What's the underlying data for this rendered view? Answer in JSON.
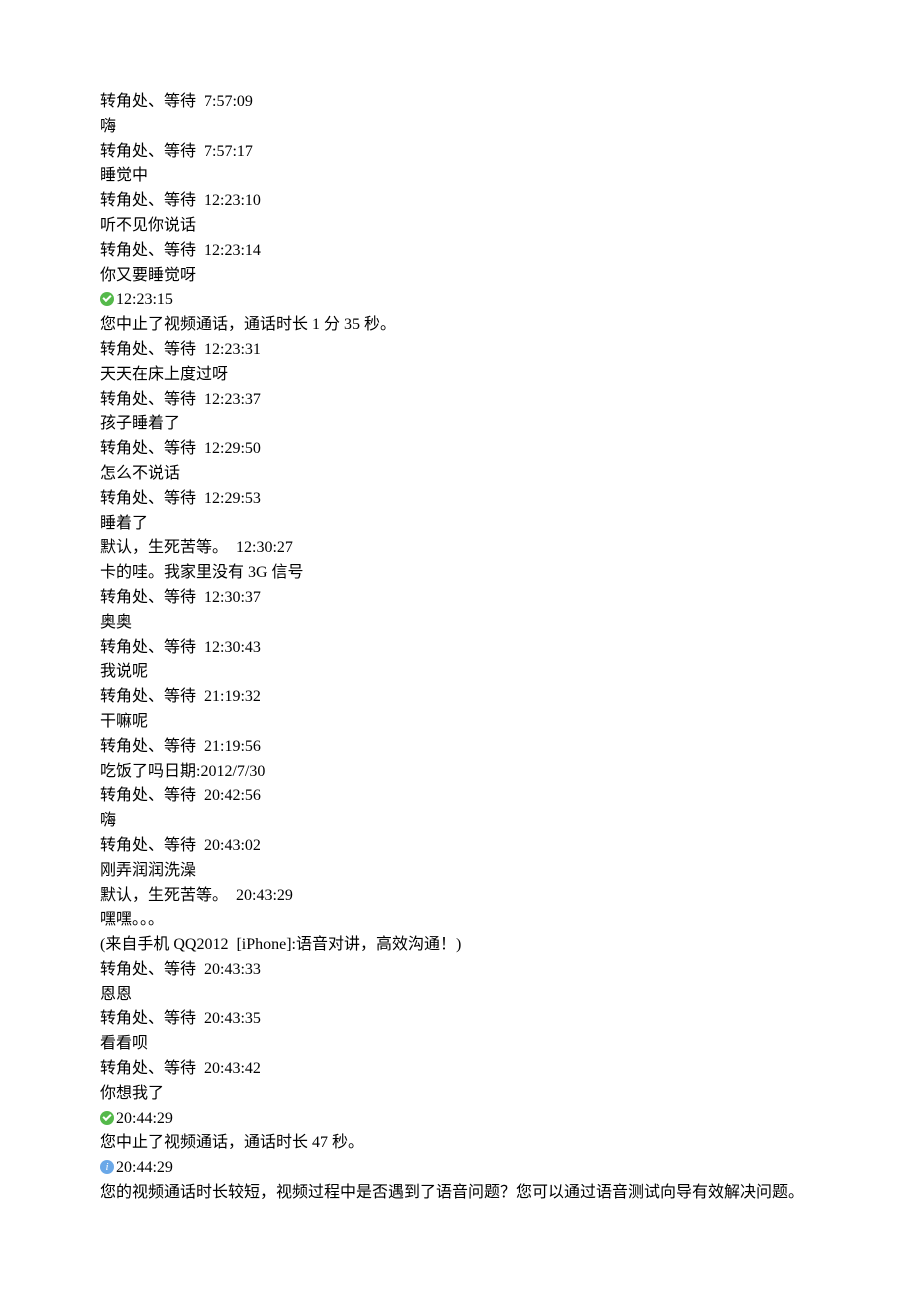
{
  "senders": {
    "a": "转角处、等待",
    "b": "默认，生死苦等。"
  },
  "sep": "  ",
  "entries": [
    {
      "type": "msg",
      "sender": "a",
      "time": "7:57:09",
      "text": "嗨"
    },
    {
      "type": "msg",
      "sender": "a",
      "time": "7:57:17",
      "text": "睡觉中"
    },
    {
      "type": "msg",
      "sender": "a",
      "time": "12:23:10",
      "text": "听不见你说话"
    },
    {
      "type": "msg",
      "sender": "a",
      "time": "12:23:14",
      "text": "你又要睡觉呀"
    },
    {
      "type": "sys",
      "icon": "ok",
      "time": "12:23:15",
      "text": "您中止了视频通话，通话时长 1 分 35 秒。"
    },
    {
      "type": "msg",
      "sender": "a",
      "time": "12:23:31",
      "text": "天天在床上度过呀"
    },
    {
      "type": "msg",
      "sender": "a",
      "time": "12:23:37",
      "text": "孩子睡着了"
    },
    {
      "type": "msg",
      "sender": "a",
      "time": "12:29:50",
      "text": "怎么不说话"
    },
    {
      "type": "msg",
      "sender": "a",
      "time": "12:29:53",
      "text": "睡着了"
    },
    {
      "type": "msg",
      "sender": "b",
      "time": "12:30:27",
      "text": "卡的哇。我家里没有 3G 信号"
    },
    {
      "type": "msg",
      "sender": "a",
      "time": "12:30:37",
      "text": "奥奥"
    },
    {
      "type": "msg",
      "sender": "a",
      "time": "12:30:43",
      "text": "我说呢"
    },
    {
      "type": "msg",
      "sender": "a",
      "time": "21:19:32",
      "text": "干嘛呢"
    },
    {
      "type": "msg",
      "sender": "a",
      "time": "21:19:56",
      "text": "吃饭了吗日期:2012/7/30"
    },
    {
      "type": "msg",
      "sender": "a",
      "time": "20:42:56",
      "text": "嗨"
    },
    {
      "type": "msg",
      "sender": "a",
      "time": "20:43:02",
      "text": "刚弄润润洗澡"
    },
    {
      "type": "msg",
      "sender": "b",
      "time": "20:43:29",
      "text": "嘿嘿。。。",
      "extra": "(来自手机 QQ2012  [iPhone]:语音对讲，高效沟通！)"
    },
    {
      "type": "msg",
      "sender": "a",
      "time": "20:43:33",
      "text": "恩恩"
    },
    {
      "type": "msg",
      "sender": "a",
      "time": "20:43:35",
      "text": "看看呗"
    },
    {
      "type": "msg",
      "sender": "a",
      "time": "20:43:42",
      "text": "你想我了"
    },
    {
      "type": "sys",
      "icon": "ok",
      "time": "20:44:29",
      "text": "您中止了视频通话，通话时长 47 秒。"
    },
    {
      "type": "sys",
      "icon": "info",
      "time": "20:44:29",
      "text": "您的视频通话时长较短，视频过程中是否遇到了语音问题？您可以通过语音测试向导有效解决问题。"
    }
  ],
  "colors": {
    "text": "#000000",
    "background": "#ffffff",
    "icon_ok": "#54b94a",
    "icon_info": "#6aa8e8"
  },
  "typography": {
    "font_family": "SimSun",
    "font_size_pt": 12,
    "line_height": 1.55
  }
}
